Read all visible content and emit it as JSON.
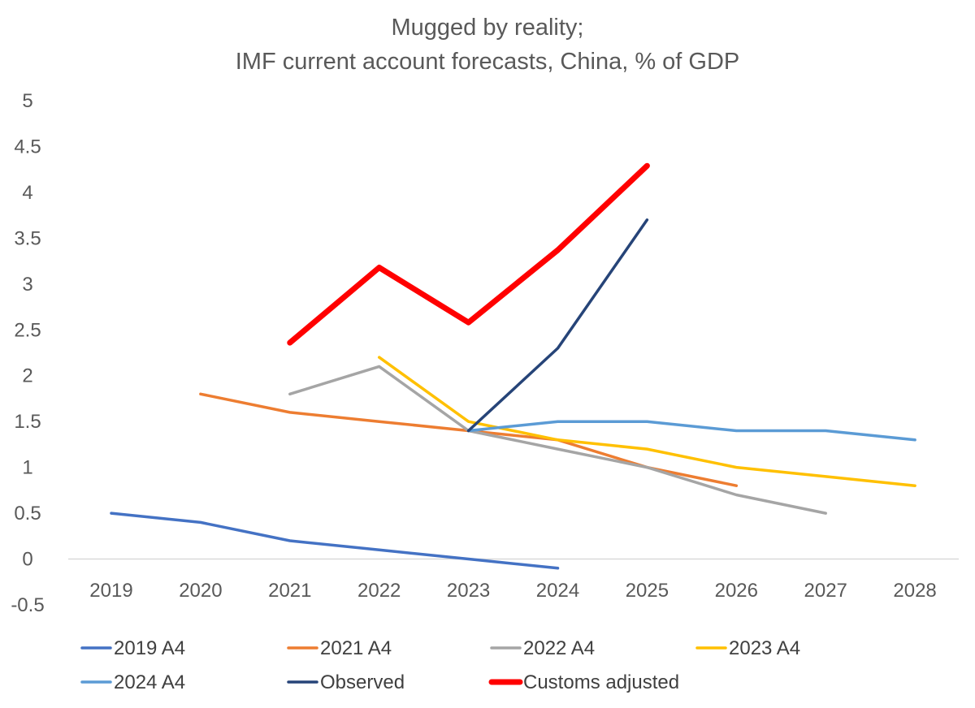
{
  "chart_data": {
    "type": "line",
    "title": [
      "Mugged by reality;",
      "IMF current account forecasts, China, % of GDP"
    ],
    "xlabel": "",
    "ylabel": "",
    "categories": [
      "2019",
      "2020",
      "2021",
      "2022",
      "2023",
      "2024",
      "2025",
      "2026",
      "2027",
      "2028"
    ],
    "ylim": [
      -0.5,
      5
    ],
    "yticks": [
      -0.5,
      0,
      0.5,
      1,
      1.5,
      2,
      2.5,
      3,
      3.5,
      4,
      4.5,
      5
    ],
    "ytick_labels": [
      "-0.5",
      "0",
      "0.5",
      "1",
      "1.5",
      "2",
      "2.5",
      "3",
      "3.5",
      "4",
      "4.5",
      "5"
    ],
    "grid": false,
    "legend_position": "bottom",
    "series": [
      {
        "name": "2019 A4",
        "color": "#4472C4",
        "width": 3.5,
        "values": [
          0.5,
          0.4,
          0.2,
          0.1,
          0.0,
          -0.1,
          null,
          null,
          null,
          null
        ]
      },
      {
        "name": "2021 A4",
        "color": "#ED7D31",
        "width": 3.5,
        "values": [
          null,
          1.8,
          1.6,
          1.5,
          1.4,
          1.3,
          1.0,
          0.8,
          null,
          null
        ]
      },
      {
        "name": "2022 A4",
        "color": "#A5A5A5",
        "width": 3.5,
        "values": [
          null,
          null,
          1.8,
          2.1,
          1.4,
          1.2,
          1.0,
          0.7,
          0.5,
          null
        ]
      },
      {
        "name": "2023 A4",
        "color": "#FFC000",
        "width": 3.5,
        "values": [
          null,
          null,
          null,
          2.2,
          1.5,
          1.3,
          1.2,
          1.0,
          0.9,
          0.8
        ]
      },
      {
        "name": "2024 A4",
        "color": "#5B9BD5",
        "width": 3.5,
        "values": [
          null,
          null,
          null,
          null,
          1.4,
          1.5,
          1.5,
          1.4,
          1.4,
          1.3
        ]
      },
      {
        "name": "Observed",
        "color": "#264478",
        "width": 3.5,
        "values": [
          null,
          null,
          null,
          null,
          1.4,
          2.3,
          3.7,
          null,
          null,
          null
        ]
      },
      {
        "name": "Customs adjusted",
        "color": "#FF0000",
        "width": 7,
        "values": [
          null,
          null,
          2.36,
          3.18,
          2.58,
          3.37,
          4.29,
          null,
          null,
          null
        ]
      }
    ]
  }
}
